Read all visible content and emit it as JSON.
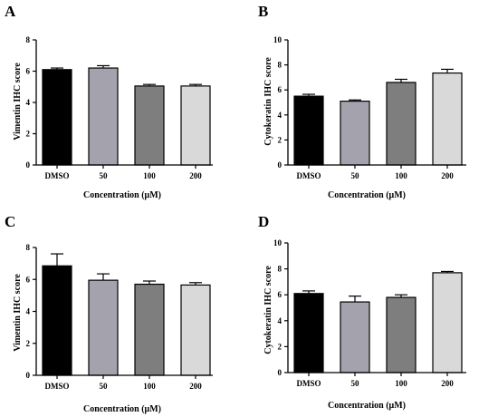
{
  "chart_data": [
    {
      "panel": "A",
      "type": "bar",
      "categories": [
        "DMSO",
        "50",
        "100",
        "200"
      ],
      "values": [
        6.1,
        6.2,
        5.05,
        5.05
      ],
      "errors": [
        0.1,
        0.15,
        0.1,
        0.1
      ],
      "colors": [
        "#000000",
        "#a4a3ad",
        "#7e7e7e",
        "#d9d9d9"
      ],
      "xlabel": "Concentration (μM)",
      "ylabel": "Vimentin IHC score",
      "ylim": [
        0,
        8
      ],
      "yticks": [
        "0",
        "2",
        "4",
        "6",
        "8"
      ]
    },
    {
      "panel": "B",
      "type": "bar",
      "categories": [
        "DMSO",
        "50",
        "100",
        "200"
      ],
      "values": [
        5.5,
        5.1,
        6.6,
        7.35
      ],
      "errors": [
        0.15,
        0.1,
        0.25,
        0.3
      ],
      "colors": [
        "#000000",
        "#a4a3ad",
        "#7e7e7e",
        "#d9d9d9"
      ],
      "xlabel": "Concentration (μM)",
      "ylabel": "Cytokeratin IHC score",
      "ylim": [
        0,
        10
      ],
      "yticks": [
        "0",
        "2",
        "4",
        "6",
        "8",
        "10"
      ]
    },
    {
      "panel": "C",
      "type": "bar",
      "categories": [
        "DMSO",
        "50",
        "100",
        "200"
      ],
      "values": [
        6.85,
        5.95,
        5.7,
        5.65
      ],
      "errors": [
        0.75,
        0.4,
        0.2,
        0.15
      ],
      "colors": [
        "#000000",
        "#a4a3ad",
        "#7e7e7e",
        "#d9d9d9"
      ],
      "xlabel": "Concentration (μM)",
      "ylabel": "Vimentin IHC score",
      "ylim": [
        0,
        8
      ],
      "yticks": [
        "0",
        "2",
        "4",
        "6",
        "8"
      ]
    },
    {
      "panel": "D",
      "type": "bar",
      "categories": [
        "DMSO",
        "50",
        "100",
        "200"
      ],
      "values": [
        6.1,
        5.45,
        5.8,
        7.7
      ],
      "errors": [
        0.2,
        0.45,
        0.2,
        0.1
      ],
      "colors": [
        "#000000",
        "#a4a3ad",
        "#7e7e7e",
        "#d9d9d9"
      ],
      "xlabel": "Concentration (μM)",
      "ylabel": "Cytokeratin IHC score",
      "ylim": [
        0,
        10
      ],
      "yticks": [
        "0",
        "2",
        "4",
        "6",
        "8",
        "10"
      ]
    }
  ]
}
